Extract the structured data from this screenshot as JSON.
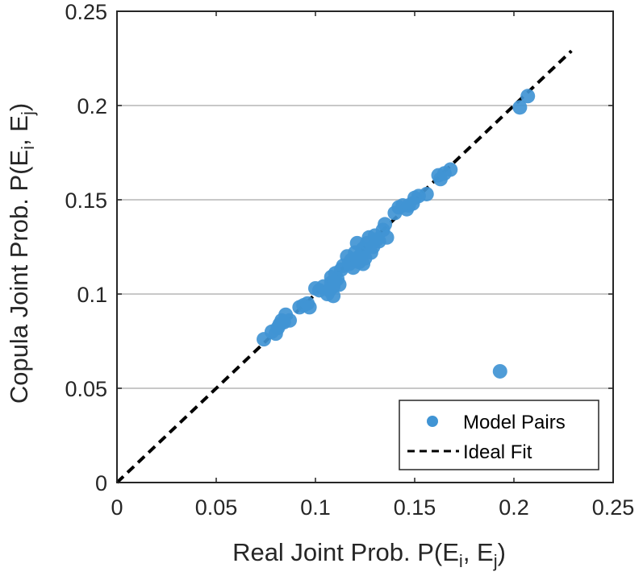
{
  "chart_data": {
    "type": "scatter",
    "xlabel": "Real Joint Prob. P(E",
    "xlabel_sub1": "i",
    "xlabel_mid": ", E",
    "xlabel_sub2": "j",
    "xlabel_end": ")",
    "ylabel": "Copula Joint Prob. P(E",
    "ylabel_sub1": "i",
    "ylabel_mid": ", E",
    "ylabel_sub2": "j",
    "ylabel_end": ")",
    "xlim": [
      0,
      0.25
    ],
    "ylim": [
      0,
      0.25
    ],
    "xticks": [
      "0",
      "0.05",
      "0.1",
      "0.15",
      "0.2",
      "0.25"
    ],
    "yticks": [
      "0",
      "0.05",
      "0.1",
      "0.15",
      "0.2",
      "0.25"
    ],
    "ygrid": true,
    "legend_position": "bottom-right",
    "series": [
      {
        "name": "Model Pairs",
        "style": "marker",
        "color": "#4094d4",
        "points": [
          [
            0.074,
            0.076
          ],
          [
            0.078,
            0.08
          ],
          [
            0.08,
            0.079
          ],
          [
            0.081,
            0.082
          ],
          [
            0.082,
            0.084
          ],
          [
            0.083,
            0.086
          ],
          [
            0.084,
            0.085
          ],
          [
            0.085,
            0.089
          ],
          [
            0.087,
            0.086
          ],
          [
            0.092,
            0.093
          ],
          [
            0.094,
            0.094
          ],
          [
            0.096,
            0.095
          ],
          [
            0.097,
            0.093
          ],
          [
            0.1,
            0.103
          ],
          [
            0.102,
            0.102
          ],
          [
            0.104,
            0.104
          ],
          [
            0.106,
            0.1
          ],
          [
            0.107,
            0.102
          ],
          [
            0.108,
            0.109
          ],
          [
            0.108,
            0.106
          ],
          [
            0.109,
            0.104
          ],
          [
            0.109,
            0.099
          ],
          [
            0.11,
            0.107
          ],
          [
            0.11,
            0.111
          ],
          [
            0.111,
            0.108
          ],
          [
            0.112,
            0.105
          ],
          [
            0.113,
            0.113
          ],
          [
            0.114,
            0.115
          ],
          [
            0.116,
            0.12
          ],
          [
            0.117,
            0.116
          ],
          [
            0.118,
            0.118
          ],
          [
            0.119,
            0.114
          ],
          [
            0.12,
            0.122
          ],
          [
            0.121,
            0.119
          ],
          [
            0.121,
            0.127
          ],
          [
            0.122,
            0.117
          ],
          [
            0.123,
            0.121
          ],
          [
            0.124,
            0.124
          ],
          [
            0.124,
            0.116
          ],
          [
            0.125,
            0.119
          ],
          [
            0.126,
            0.127
          ],
          [
            0.127,
            0.13
          ],
          [
            0.128,
            0.122
          ],
          [
            0.129,
            0.125
          ],
          [
            0.13,
            0.131
          ],
          [
            0.131,
            0.129
          ],
          [
            0.132,
            0.128
          ],
          [
            0.134,
            0.134
          ],
          [
            0.135,
            0.137
          ],
          [
            0.136,
            0.13
          ],
          [
            0.14,
            0.143
          ],
          [
            0.142,
            0.146
          ],
          [
            0.144,
            0.147
          ],
          [
            0.146,
            0.145
          ],
          [
            0.147,
            0.147
          ],
          [
            0.149,
            0.148
          ],
          [
            0.15,
            0.151
          ],
          [
            0.152,
            0.152
          ],
          [
            0.156,
            0.153
          ],
          [
            0.162,
            0.163
          ],
          [
            0.163,
            0.161
          ],
          [
            0.165,
            0.164
          ],
          [
            0.168,
            0.166
          ],
          [
            0.193,
            0.059
          ],
          [
            0.203,
            0.199
          ],
          [
            0.207,
            0.205
          ]
        ]
      },
      {
        "name": "Ideal Fit",
        "style": "dashed-line",
        "color": "#000000",
        "x": [
          0,
          0.229
        ],
        "y": [
          0,
          0.229
        ]
      }
    ]
  }
}
